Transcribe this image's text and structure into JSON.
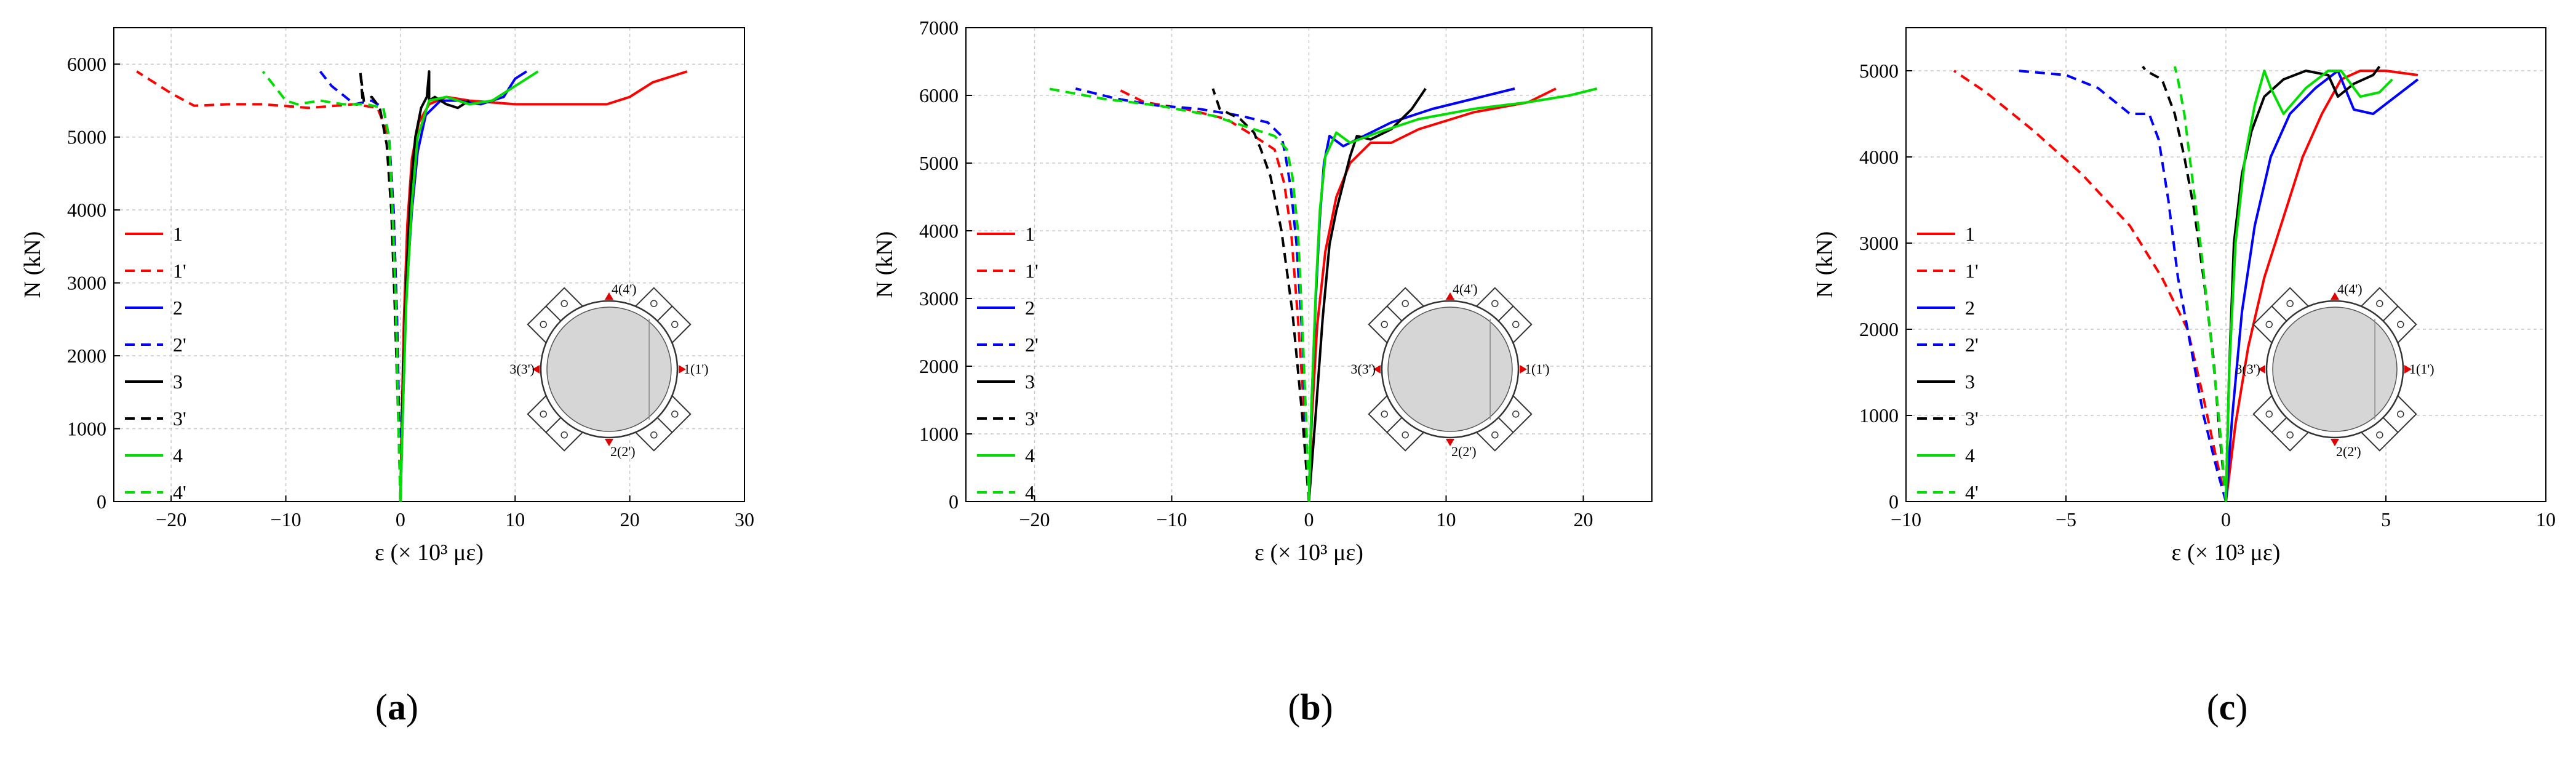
{
  "figure": {
    "captions": [
      {
        "open": "(",
        "letter": "a",
        "close": ")"
      },
      {
        "open": "(",
        "letter": "b",
        "close": ")"
      },
      {
        "open": "(",
        "letter": "c",
        "close": ")"
      }
    ]
  },
  "diagram": {
    "labels": [
      "1(1')",
      "2(2')",
      "3(3')",
      "4(4')"
    ]
  },
  "chart_data": [
    {
      "type": "line",
      "panel": "a",
      "xlabel": "ε (× 10³ με)",
      "ylabel": "N (kN)",
      "xlim": [
        -25,
        30
      ],
      "ylim": [
        0,
        6500
      ],
      "xticks": [
        -20,
        -10,
        0,
        10,
        20,
        30
      ],
      "yticks": [
        0,
        1000,
        2000,
        3000,
        4000,
        5000,
        6000
      ],
      "xtick_labels": [
        "−20",
        "−10",
        "0",
        "10",
        "20",
        "30"
      ],
      "ytick_labels": [
        "0",
        "1000",
        "2000",
        "3000",
        "4000",
        "5000",
        "6000"
      ],
      "grid": true,
      "legend_position": "left",
      "series": [
        {
          "name": "1",
          "color": "#ff0000",
          "dash": "solid",
          "x": [
            0,
            0.1,
            0.3,
            0.6,
            1.0,
            1.6,
            2.5,
            4,
            6,
            10,
            15,
            18,
            20,
            22,
            25
          ],
          "y": [
            0,
            1000,
            2500,
            3800,
            4700,
            5200,
            5450,
            5550,
            5500,
            5450,
            5450,
            5450,
            5550,
            5750,
            5900
          ]
        },
        {
          "name": "1'",
          "color": "#ff0000",
          "dash": "dashed",
          "x": [
            0,
            -0.1,
            -0.3,
            -0.6,
            -1,
            -2,
            -4,
            -8,
            -12,
            -15,
            -18,
            -20,
            -23
          ],
          "y": [
            0,
            1000,
            2500,
            4000,
            5000,
            5400,
            5450,
            5400,
            5450,
            5450,
            5430,
            5600,
            5900
          ]
        },
        {
          "name": "2",
          "color": "#0000ff",
          "dash": "solid",
          "x": [
            0,
            0.2,
            0.5,
            1.0,
            1.5,
            2.2,
            3.5,
            5,
            7,
            9,
            10,
            11
          ],
          "y": [
            0,
            1200,
            2800,
            4000,
            4800,
            5300,
            5500,
            5500,
            5450,
            5550,
            5800,
            5900
          ]
        },
        {
          "name": "2'",
          "color": "#0000ff",
          "dash": "dashed",
          "x": [
            0,
            -0.1,
            -0.3,
            -0.6,
            -1.0,
            -1.5,
            -2.5,
            -4,
            -6,
            -7
          ],
          "y": [
            0,
            1000,
            2500,
            4000,
            5000,
            5400,
            5500,
            5450,
            5700,
            5900
          ]
        },
        {
          "name": "3",
          "color": "#000000",
          "dash": "solid",
          "x": [
            0,
            0.2,
            0.5,
            0.9,
            1.3,
            1.8,
            2.3,
            2.5,
            2.5,
            3,
            4,
            5,
            6
          ],
          "y": [
            0,
            1500,
            3000,
            4300,
            5000,
            5400,
            5550,
            5900,
            5500,
            5550,
            5450,
            5400,
            5500
          ]
        },
        {
          "name": "3'",
          "color": "#000000",
          "dash": "dashed",
          "x": [
            0,
            -0.2,
            -0.5,
            -0.8,
            -1.2,
            -1.8,
            -2.5,
            -3.2,
            -3.5,
            -3.3
          ],
          "y": [
            0,
            1200,
            2700,
            4000,
            4900,
            5400,
            5550,
            5500,
            5900,
            5500
          ]
        },
        {
          "name": "4",
          "color": "#00dd00",
          "dash": "solid",
          "x": [
            0,
            0.2,
            0.5,
            1.0,
            1.5,
            2.5,
            4,
            6,
            8,
            10,
            12
          ],
          "y": [
            0,
            1200,
            2700,
            4100,
            5000,
            5500,
            5550,
            5450,
            5500,
            5700,
            5900
          ]
        },
        {
          "name": "4'",
          "color": "#00dd00",
          "dash": "dashed",
          "x": [
            0,
            -0.2,
            -0.4,
            -0.7,
            -1.0,
            -1.5,
            -3,
            -5,
            -7,
            -9,
            -10,
            -12
          ],
          "y": [
            0,
            1200,
            2700,
            4000,
            5000,
            5400,
            5450,
            5450,
            5500,
            5450,
            5500,
            5900
          ]
        }
      ]
    },
    {
      "type": "line",
      "panel": "b",
      "xlabel": "ε (× 10³ με)",
      "ylabel": "N (kN)",
      "xlim": [
        -25,
        25
      ],
      "ylim": [
        0,
        7000
      ],
      "xticks": [
        -20,
        -10,
        0,
        10,
        20
      ],
      "yticks": [
        0,
        1000,
        2000,
        3000,
        4000,
        5000,
        6000,
        7000
      ],
      "xtick_labels": [
        "−20",
        "−10",
        "0",
        "10",
        "20"
      ],
      "ytick_labels": [
        "0",
        "1000",
        "2000",
        "3000",
        "4000",
        "5000",
        "6000",
        "7000"
      ],
      "grid": true,
      "legend_position": "left",
      "series": [
        {
          "name": "1",
          "color": "#ff0000",
          "dash": "solid",
          "x": [
            0,
            0.2,
            0.6,
            1.2,
            2.0,
            3.0,
            4.5,
            6,
            8,
            12,
            16,
            18
          ],
          "y": [
            0,
            1200,
            2600,
            3700,
            4500,
            5000,
            5300,
            5300,
            5500,
            5750,
            5900,
            6100
          ]
        },
        {
          "name": "1'",
          "color": "#ff0000",
          "dash": "dashed",
          "x": [
            0,
            -0.3,
            -0.8,
            -1.3,
            -1.8,
            -2.5,
            -4,
            -6,
            -9,
            -12,
            -14
          ],
          "y": [
            0,
            1200,
            2700,
            4000,
            4700,
            5200,
            5400,
            5650,
            5800,
            5900,
            6100
          ]
        },
        {
          "name": "2",
          "color": "#0000ff",
          "dash": "solid",
          "x": [
            0,
            0.2,
            0.5,
            0.8,
            1.1,
            1.5,
            2.5,
            4,
            6,
            9,
            12,
            15
          ],
          "y": [
            0,
            1500,
            3000,
            4200,
            5000,
            5400,
            5250,
            5400,
            5600,
            5800,
            5950,
            6100
          ]
        },
        {
          "name": "2'",
          "color": "#0000ff",
          "dash": "dashed",
          "x": [
            0,
            -0.2,
            -0.5,
            -0.9,
            -1.3,
            -1.7,
            -2,
            -3,
            -5,
            -8,
            -11,
            -14,
            -17
          ],
          "y": [
            0,
            1000,
            2500,
            3800,
            4600,
            5100,
            5400,
            5600,
            5700,
            5800,
            5850,
            5950,
            6100
          ]
        },
        {
          "name": "3",
          "color": "#000000",
          "dash": "solid",
          "x": [
            0,
            0.5,
            1.0,
            1.5,
            2.0,
            2.5,
            3.0,
            3.5,
            4.5,
            6,
            7.5,
            8.5
          ],
          "y": [
            0,
            1300,
            2700,
            3800,
            4300,
            4700,
            5100,
            5400,
            5350,
            5500,
            5800,
            6100
          ]
        },
        {
          "name": "3'",
          "color": "#000000",
          "dash": "dashed",
          "x": [
            0,
            -0.5,
            -1.2,
            -2,
            -2.8,
            -3.5,
            -4,
            -5,
            -6.5,
            -7
          ],
          "y": [
            0,
            1300,
            2800,
            4000,
            4800,
            5200,
            5450,
            5650,
            5800,
            6100
          ]
        },
        {
          "name": "4",
          "color": "#00dd00",
          "dash": "solid",
          "x": [
            0,
            0.2,
            0.5,
            0.8,
            1.2,
            2,
            3,
            5,
            8,
            12,
            16,
            19,
            21
          ],
          "y": [
            0,
            1500,
            3100,
            4300,
            5100,
            5450,
            5300,
            5450,
            5650,
            5800,
            5900,
            6000,
            6100
          ]
        },
        {
          "name": "4",
          "color": "#00dd00",
          "dash": "dashed",
          "x": [
            0,
            -0.2,
            -0.5,
            -0.8,
            -1.2,
            -1.6,
            -2.5,
            -4,
            -7,
            -11,
            -15,
            -19
          ],
          "y": [
            0,
            1200,
            2700,
            4000,
            4800,
            5200,
            5400,
            5500,
            5700,
            5850,
            5950,
            6100
          ]
        }
      ]
    },
    {
      "type": "line",
      "panel": "c",
      "xlabel": "ε (× 10³ με)",
      "ylabel": "N (kN)",
      "xlim": [
        -10,
        10
      ],
      "ylim": [
        0,
        5500
      ],
      "xticks": [
        -10,
        -5,
        0,
        5,
        10
      ],
      "yticks": [
        0,
        1000,
        2000,
        3000,
        4000,
        5000
      ],
      "xtick_labels": [
        "−10",
        "−5",
        "0",
        "5",
        "10"
      ],
      "ytick_labels": [
        "0",
        "1000",
        "2000",
        "3000",
        "4000",
        "5000"
      ],
      "grid": true,
      "legend_position": "left",
      "series": [
        {
          "name": "1",
          "color": "#ff0000",
          "dash": "solid",
          "x": [
            0,
            0.3,
            0.7,
            1.2,
            1.8,
            2.4,
            3.0,
            3.6,
            4.2,
            5.0,
            6.0
          ],
          "y": [
            0,
            900,
            1800,
            2600,
            3300,
            4000,
            4500,
            4900,
            5000,
            5000,
            4950
          ]
        },
        {
          "name": "1'",
          "color": "#ff0000",
          "dash": "dashed",
          "x": [
            0,
            -0.3,
            -0.7,
            -1.2,
            -2,
            -3,
            -4.5,
            -6,
            -7.5,
            -8.5
          ],
          "y": [
            0,
            500,
            1200,
            2000,
            2600,
            3200,
            3800,
            4300,
            4750,
            5000
          ]
        },
        {
          "name": "2",
          "color": "#0000ff",
          "dash": "solid",
          "x": [
            0,
            0.2,
            0.5,
            0.9,
            1.4,
            2.0,
            2.8,
            3.5,
            4.0,
            4.6,
            5.3,
            6.0
          ],
          "y": [
            0,
            1000,
            2200,
            3200,
            4000,
            4500,
            4800,
            5000,
            4550,
            4500,
            4700,
            4900
          ]
        },
        {
          "name": "2'",
          "color": "#0000ff",
          "dash": "dashed",
          "x": [
            0,
            -0.3,
            -0.7,
            -1.1,
            -1.5,
            -1.8,
            -2.1,
            -2.4,
            -3,
            -4,
            -5,
            -6.5
          ],
          "y": [
            0,
            400,
            1000,
            1800,
            2600,
            3500,
            4200,
            4500,
            4500,
            4800,
            4950,
            5000
          ]
        },
        {
          "name": "3",
          "color": "#000000",
          "dash": "solid",
          "x": [
            0,
            0.1,
            0.25,
            0.5,
            0.8,
            1.2,
            1.8,
            2.5,
            3.2,
            3.5,
            4.0,
            4.6,
            4.8
          ],
          "y": [
            0,
            1500,
            3000,
            3800,
            4300,
            4700,
            4900,
            5000,
            4950,
            4700,
            4850,
            4950,
            5050
          ]
        },
        {
          "name": "3'",
          "color": "#000000",
          "dash": "dashed",
          "x": [
            0,
            -0.2,
            -0.4,
            -0.7,
            -1.0,
            -1.3,
            -1.6,
            -2.0,
            -2.5,
            -2.6
          ],
          "y": [
            0,
            800,
            1700,
            2600,
            3400,
            4000,
            4500,
            4900,
            5000,
            5050
          ]
        },
        {
          "name": "4",
          "color": "#00dd00",
          "dash": "solid",
          "x": [
            0,
            0.1,
            0.3,
            0.6,
            0.9,
            1.2,
            1.4,
            1.8,
            2.5,
            3.2,
            3.6,
            4.2,
            4.8,
            5.2
          ],
          "y": [
            0,
            1500,
            3000,
            4000,
            4600,
            5000,
            4800,
            4500,
            4800,
            5000,
            5000,
            4700,
            4750,
            4900
          ]
        },
        {
          "name": "4'",
          "color": "#00dd00",
          "dash": "dashed",
          "x": [
            0,
            -0.2,
            -0.5,
            -0.8,
            -1.1,
            -1.3,
            -1.5,
            -1.6
          ],
          "y": [
            0,
            900,
            2000,
            3000,
            3900,
            4500,
            4900,
            5050
          ]
        }
      ]
    }
  ]
}
